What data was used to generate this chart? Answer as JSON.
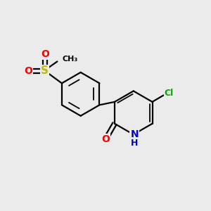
{
  "background_color": "#ebebeb",
  "bond_color": "#000000",
  "atom_colors": {
    "O": "#ff0000",
    "N": "#0000cc",
    "S": "#bbbb00",
    "Cl": "#00aa00",
    "C": "#000000",
    "H": "#000000"
  },
  "figsize": [
    3.0,
    3.0
  ],
  "dpi": 100
}
